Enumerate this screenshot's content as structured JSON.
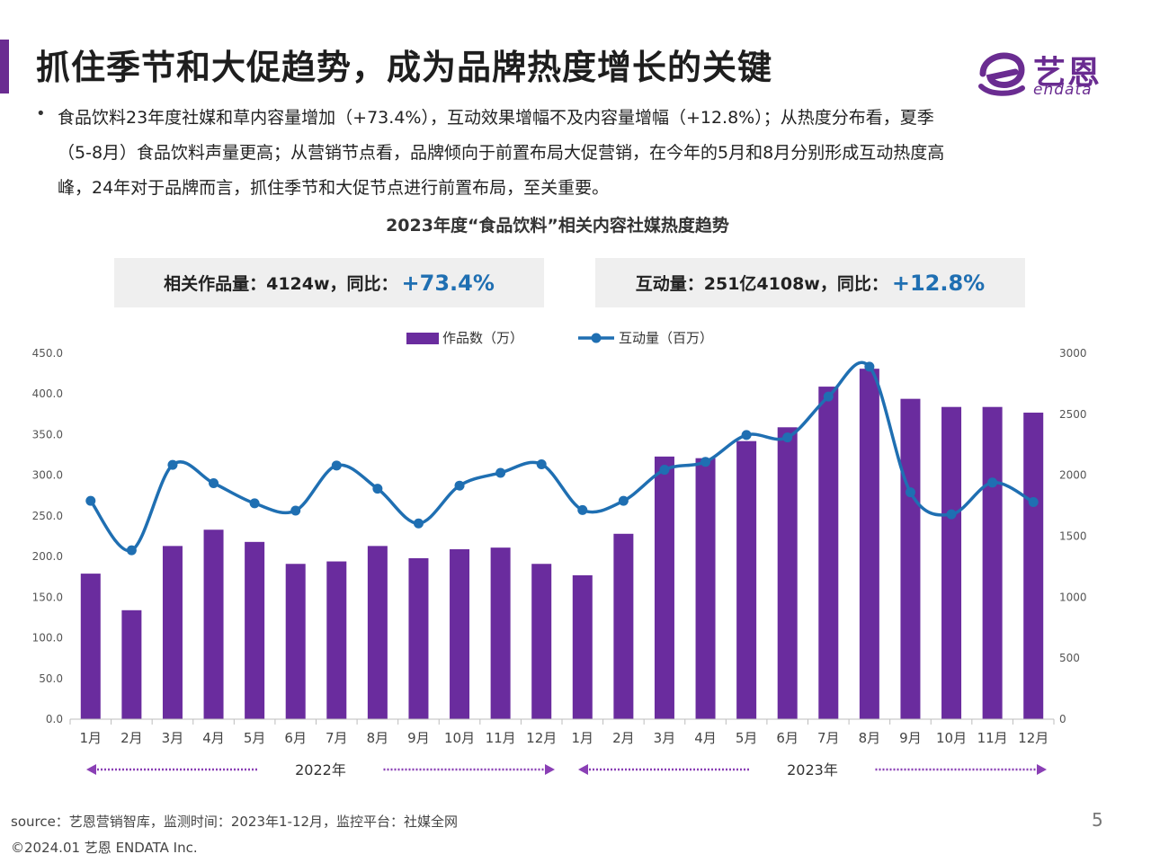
{
  "header": {
    "title": "抓住季节和大促趋势，成为品牌热度增长的关键"
  },
  "logo": {
    "text_cn": "艺恩",
    "text_en": "endata"
  },
  "bullet": {
    "text": "食品饮料23年度社媒和草内容量增加（+73.4%），互动效果增幅不及内容量增幅（+12.8%）；从热度分布看，夏季（5-8月）食品饮料声量更高；从营销节点看，品牌倾向于前置布局大促营销，在今年的5月和8月分别形成互动热度高峰，24年对于品牌而言，抓住季节和大促节点进行前置布局，至关重要。"
  },
  "stats": {
    "left_label": "相关作品量：4124w，同比：",
    "left_value": "+73.4%",
    "right_label": "互动量：251亿4108w，同比：",
    "right_value": "+12.8%"
  },
  "chart_data": {
    "type": "bar",
    "title": "2023年度“食品饮料”相关内容社媒热度趋势",
    "categories": [
      "1月",
      "2月",
      "3月",
      "4月",
      "5月",
      "6月",
      "7月",
      "8月",
      "9月",
      "10月",
      "11月",
      "12月",
      "1月",
      "2月",
      "3月",
      "4月",
      "5月",
      "6月",
      "7月",
      "8月",
      "9月",
      "10月",
      "11月",
      "12月"
    ],
    "series": [
      {
        "name": "作品数（万）",
        "type": "bar",
        "axis": "left",
        "color": "#6a2c9e",
        "values": [
          179,
          134,
          213,
          233,
          218,
          191,
          194,
          213,
          198,
          209,
          211,
          191,
          177,
          228,
          323,
          321,
          342,
          359,
          409,
          431,
          394,
          384,
          384,
          377
        ]
      },
      {
        "name": "互动量（百万）",
        "type": "line",
        "axis": "right",
        "color": "#1f6fb2",
        "values": [
          1790,
          1385,
          2085,
          1935,
          1770,
          1710,
          2080,
          1890,
          1605,
          1915,
          2020,
          2090,
          1715,
          1790,
          2045,
          2110,
          2330,
          2310,
          2645,
          2890,
          1860,
          1680,
          1940,
          1780
        ]
      }
    ],
    "y_left_range": [
      0,
      450
    ],
    "y_left_ticks": [
      "0.0",
      "50.0",
      "100.0",
      "150.0",
      "200.0",
      "250.0",
      "300.0",
      "350.0",
      "400.0",
      "450.0"
    ],
    "y_right_range": [
      0,
      3000
    ],
    "y_right_ticks": [
      "0",
      "500",
      "1000",
      "1500",
      "2000",
      "2500",
      "3000"
    ],
    "legend_position": "top-center",
    "grid": false,
    "year_groups": [
      {
        "label": "2022年",
        "start_index": 0,
        "end_index": 11
      },
      {
        "label": "2023年",
        "start_index": 12,
        "end_index": 23
      }
    ]
  },
  "footer": {
    "source": "source：艺恩营销智库，监测时间：2023年1-12月，监控平台：社媒全网",
    "copyright": "©2024.01  艺恩 ENDATA Inc.",
    "page_number": "5"
  }
}
